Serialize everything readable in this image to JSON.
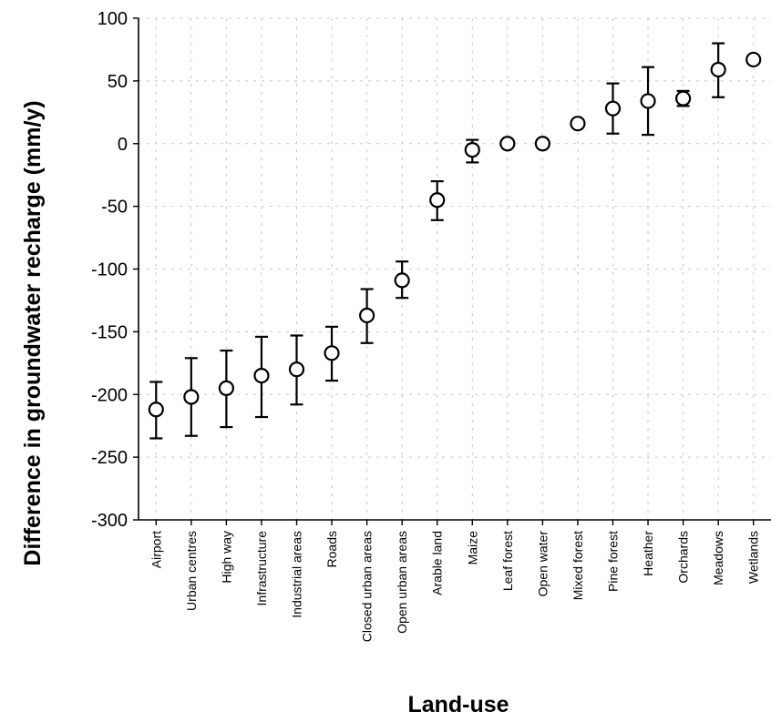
{
  "chart_data": {
    "type": "scatter",
    "title": "",
    "xlabel": "Land-use",
    "ylabel": "Difference in groundwater recharge (mm/y)",
    "ylim": [
      -300,
      100
    ],
    "yticks": [
      100,
      50,
      0,
      -50,
      -100,
      -150,
      -200,
      -250,
      -300
    ],
    "grid": true,
    "error_bars": true,
    "categories": [
      "Airport",
      "Urban centres",
      "High way",
      "Infrastructure",
      "Industrial areas",
      "Roads",
      "Closed urban areas",
      "Open urban areas",
      "Arable land",
      "Maize",
      "Leaf forest",
      "Open water",
      "Mixed forest",
      "Pine forest",
      "Heather",
      "Orchards",
      "Meadows",
      "Wetlands"
    ],
    "series": [
      {
        "values": [
          -212,
          -202,
          -195,
          -185,
          -180,
          -167,
          -137,
          -109,
          -45,
          -5,
          0,
          0,
          16,
          28,
          34,
          36,
          59,
          67
        ],
        "error_low": [
          -235,
          -233,
          -226,
          -218,
          -208,
          -189,
          -159,
          -123,
          -61,
          -15,
          0,
          0,
          13,
          8,
          7,
          30,
          37,
          67
        ],
        "error_high": [
          -190,
          -171,
          -165,
          -154,
          -153,
          -146,
          -116,
          -94,
          -30,
          3,
          0,
          0,
          19,
          48,
          61,
          42,
          80,
          67
        ]
      }
    ]
  }
}
